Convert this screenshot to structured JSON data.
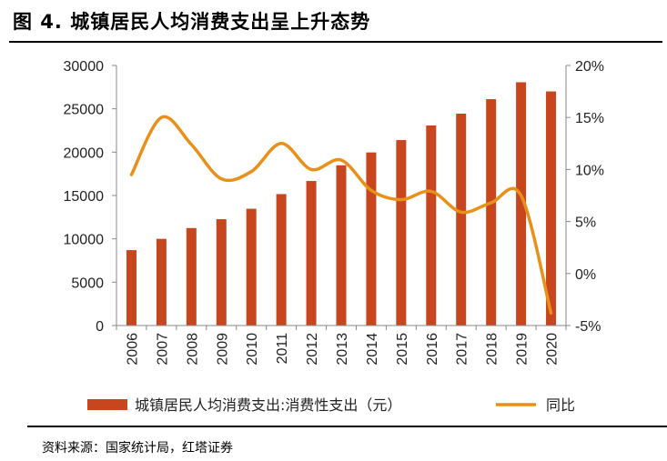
{
  "title": "图 4. 城镇居民人均消费支出呈上升态势",
  "source": "资料来源：国家统计局，红塔证券",
  "colors": {
    "bar": "#C8461E",
    "line": "#E8901A",
    "axis": "#888888"
  },
  "chart_data": {
    "type": "bar",
    "categories": [
      "2006",
      "2007",
      "2008",
      "2009",
      "2010",
      "2011",
      "2012",
      "2013",
      "2014",
      "2015",
      "2016",
      "2017",
      "2018",
      "2019",
      "2020"
    ],
    "series": [
      {
        "name": "城镇居民人均消费支出:消费性支出（元）",
        "type": "bar",
        "axis": "left",
        "values": [
          8697,
          9998,
          11243,
          12265,
          13471,
          15161,
          16674,
          18488,
          19968,
          21392,
          23079,
          24445,
          26112,
          28063,
          27007
        ]
      },
      {
        "name": "同比",
        "type": "line",
        "axis": "right",
        "values": [
          9.5,
          15.0,
          12.4,
          9.1,
          9.8,
          12.5,
          10.0,
          10.9,
          8.0,
          7.1,
          7.9,
          5.9,
          6.8,
          7.5,
          -3.8
        ]
      }
    ],
    "y_left": {
      "min": 0,
      "max": 30000,
      "ticks": [
        0,
        5000,
        10000,
        15000,
        20000,
        25000,
        30000
      ],
      "tick_labels": [
        "0",
        "5000",
        "10000",
        "15000",
        "20000",
        "25000",
        "30000"
      ]
    },
    "y_right": {
      "min": -5,
      "max": 20,
      "ticks": [
        -5,
        0,
        5,
        10,
        15,
        20
      ],
      "tick_labels": [
        "-5%",
        "0%",
        "5%",
        "10%",
        "15%",
        "20%"
      ]
    },
    "legend": [
      {
        "label": "城镇居民人均消费支出:消费性支出（元）",
        "kind": "bar"
      },
      {
        "label": "同比",
        "kind": "line"
      }
    ],
    "legend_position": "bottom"
  }
}
